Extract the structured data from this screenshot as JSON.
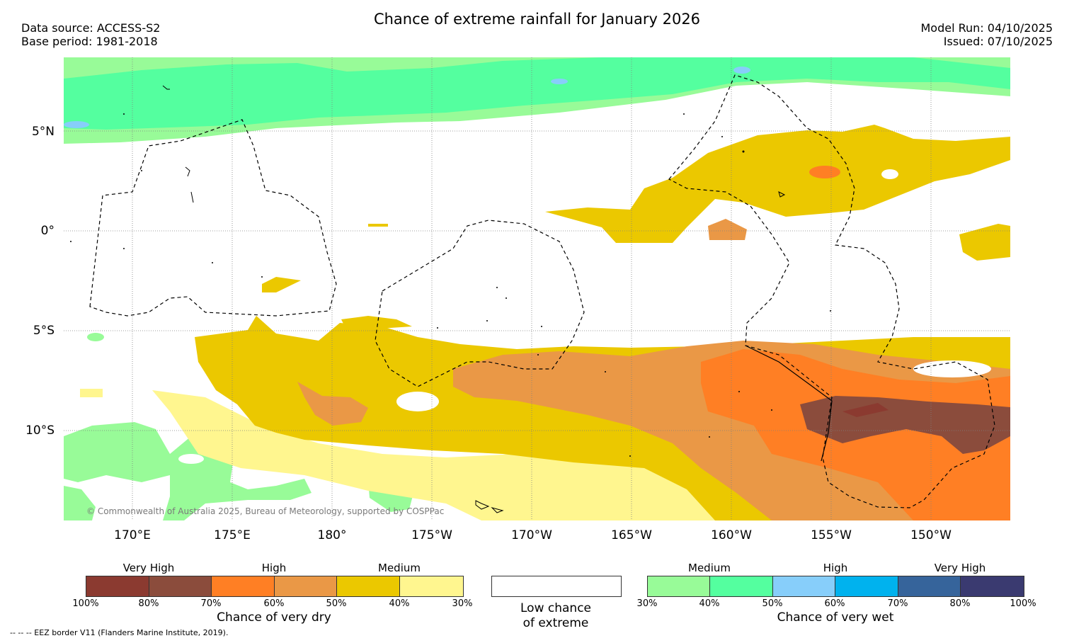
{
  "title": "Chance of extreme rainfall for January 2026",
  "data_source": "Data source: ACCESS-S2",
  "base_period": "Base period: 1981-2018",
  "model_run": "Model Run: 04/10/2025",
  "issued": "Issued: 07/10/2025",
  "lat_labels": [
    "5°N",
    "0°",
    "5°S",
    "10°S"
  ],
  "lon_labels": [
    "170°E",
    "175°E",
    "180°",
    "175°W",
    "170°W",
    "165°W",
    "160°W",
    "155°W",
    "150°W"
  ],
  "copyright": "© Commonwealth of Australia 2025, Bureau of Meteorology, supported by COSPPac",
  "footnote": "--  --  -- EEZ border V11 (Flanders Marine Institute, 2019).",
  "colors": {
    "dry_100": "#8b3a30",
    "dry_80": "#8b4c3c",
    "dry_70": "#ff7f24",
    "dry_60": "#ea9846",
    "dry_50": "#ebc800",
    "dry_40": "#fff68f",
    "wet_30": "#98fb98",
    "wet_40": "#54ff9f",
    "wet_50": "#87cefa",
    "wet_60": "#00b2ee",
    "wet_70": "#36649b",
    "wet_80": "#3a3a70"
  },
  "dry_legend": {
    "levels": [
      "Very High",
      "High",
      "Medium"
    ],
    "ticks": [
      "100%",
      "80%",
      "70%",
      "60%",
      "50%",
      "40%",
      "30%"
    ],
    "caption": "Chance of very dry"
  },
  "low_legend": {
    "caption_line1": "Low chance",
    "caption_line2": "of extreme"
  },
  "wet_legend": {
    "levels": [
      "Medium",
      "High",
      "Very High"
    ],
    "ticks": [
      "30%",
      "40%",
      "50%",
      "60%",
      "70%",
      "80%",
      "100%"
    ],
    "caption": "Chance of very wet"
  }
}
